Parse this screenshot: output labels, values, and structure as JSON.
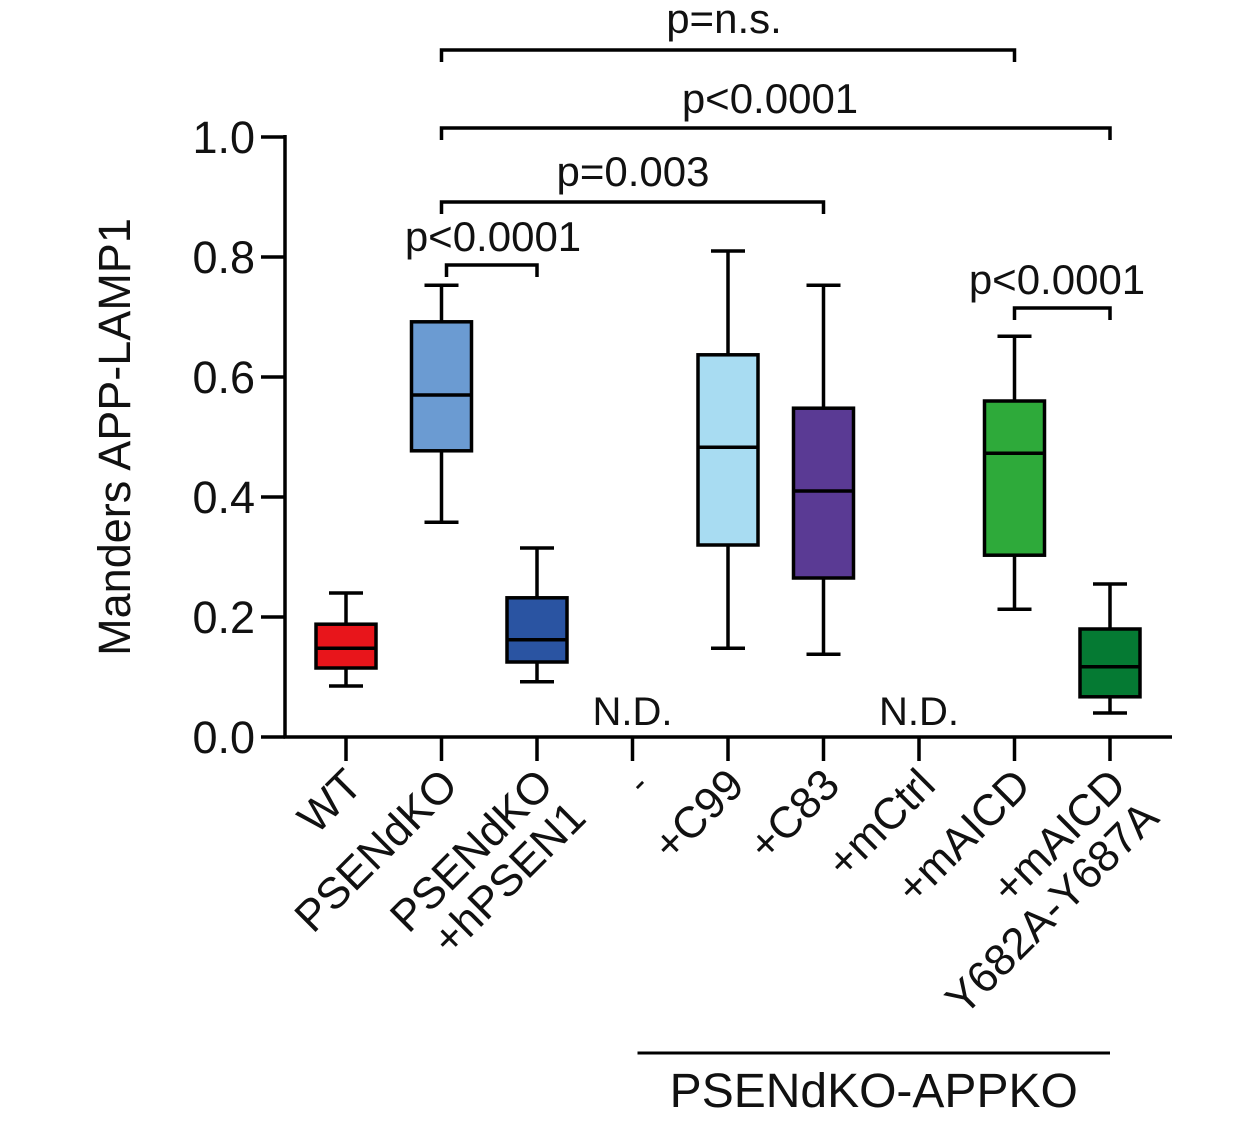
{
  "chart_data": {
    "type": "box",
    "ylabel": "Manders APP-LAMP1",
    "ylim": [
      0.0,
      1.0
    ],
    "yticks": [
      0.0,
      0.2,
      0.4,
      0.6,
      0.8,
      1.0
    ],
    "ytick_labels": [
      "0.0",
      "0.2",
      "0.4",
      "0.6",
      "0.8",
      "1.0"
    ],
    "categories": [
      {
        "label_lines": [
          "WT"
        ],
        "color": "#e8151b",
        "box": {
          "min": 0.085,
          "q1": 0.115,
          "median": 0.148,
          "q3": 0.188,
          "max": 0.24
        }
      },
      {
        "label_lines": [
          "PSENdKO"
        ],
        "color": "#6b9bd2",
        "box": {
          "min": 0.358,
          "q1": 0.477,
          "median": 0.57,
          "q3": 0.692,
          "max": 0.753
        }
      },
      {
        "label_lines": [
          "PSENdKO",
          "+hPSEN1"
        ],
        "color": "#2a54a2",
        "box": {
          "min": 0.092,
          "q1": 0.125,
          "median": 0.162,
          "q3": 0.232,
          "max": 0.315
        }
      },
      {
        "label_lines": [
          "-"
        ],
        "color": "",
        "box": null,
        "note": "N.D."
      },
      {
        "label_lines": [
          "+C99"
        ],
        "color": "#a8dcf2",
        "box": {
          "min": 0.148,
          "q1": 0.32,
          "median": 0.483,
          "q3": 0.637,
          "max": 0.81
        }
      },
      {
        "label_lines": [
          "+C83"
        ],
        "color": "#5a3a94",
        "box": {
          "min": 0.138,
          "q1": 0.265,
          "median": 0.41,
          "q3": 0.548,
          "max": 0.753
        }
      },
      {
        "label_lines": [
          "+mCtrl"
        ],
        "color": "",
        "box": null,
        "note": "N.D."
      },
      {
        "label_lines": [
          "+mAICD"
        ],
        "color": "#2eaa3a",
        "box": {
          "min": 0.213,
          "q1": 0.303,
          "median": 0.473,
          "q3": 0.56,
          "max": 0.668
        }
      },
      {
        "label_lines": [
          "+mAICD",
          "Y682A-Y687A"
        ],
        "color": "#057a33",
        "box": {
          "min": 0.04,
          "q1": 0.067,
          "median": 0.117,
          "q3": 0.18,
          "max": 0.255
        }
      }
    ],
    "significance": [
      {
        "from": 1,
        "to": 2,
        "label": "p<0.0001"
      },
      {
        "from": 1,
        "to": 5,
        "label": "p=0.003"
      },
      {
        "from": 1,
        "to": 8,
        "label": "p<0.0001"
      },
      {
        "from": 1,
        "to": 7,
        "label": "p=n.s."
      },
      {
        "from": 7,
        "to": 8,
        "label": "p<0.0001"
      }
    ],
    "group_label": {
      "from": 3,
      "to": 8,
      "label": "PSENdKO-APPKO"
    },
    "grid": false,
    "legend": "none"
  }
}
